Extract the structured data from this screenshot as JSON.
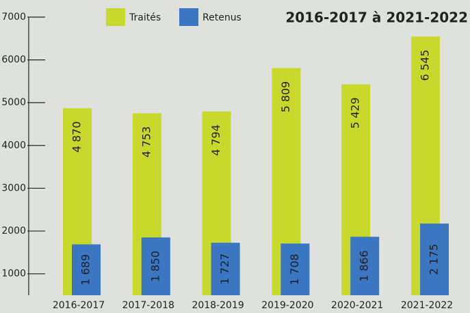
{
  "chart_data": {
    "type": "bar",
    "title": "2016-2017 à 2021-2022",
    "categories": [
      "2016-2017",
      "2017-2018",
      "2018-2019",
      "2019-2020",
      "2020-2021",
      "2021-2022"
    ],
    "series": [
      {
        "name": "Traités",
        "color": "#c8d92b",
        "values": [
          4870,
          4753,
          4794,
          5809,
          5429,
          6545
        ],
        "value_labels": [
          "4 870",
          "4 753",
          "4 794",
          "5 809",
          "5 429",
          "6 545"
        ]
      },
      {
        "name": "Retenus",
        "color": "#3a76c2",
        "values": [
          1689,
          1850,
          1727,
          1708,
          1866,
          2175
        ],
        "value_labels": [
          "1 689",
          "1 850",
          "1 727",
          "1 708",
          "1 866",
          "2 175"
        ]
      }
    ],
    "ylim": [
      500,
      7000
    ],
    "yticks": [
      1000,
      2000,
      3000,
      4000,
      5000,
      6000,
      7000
    ],
    "legend": "top"
  }
}
